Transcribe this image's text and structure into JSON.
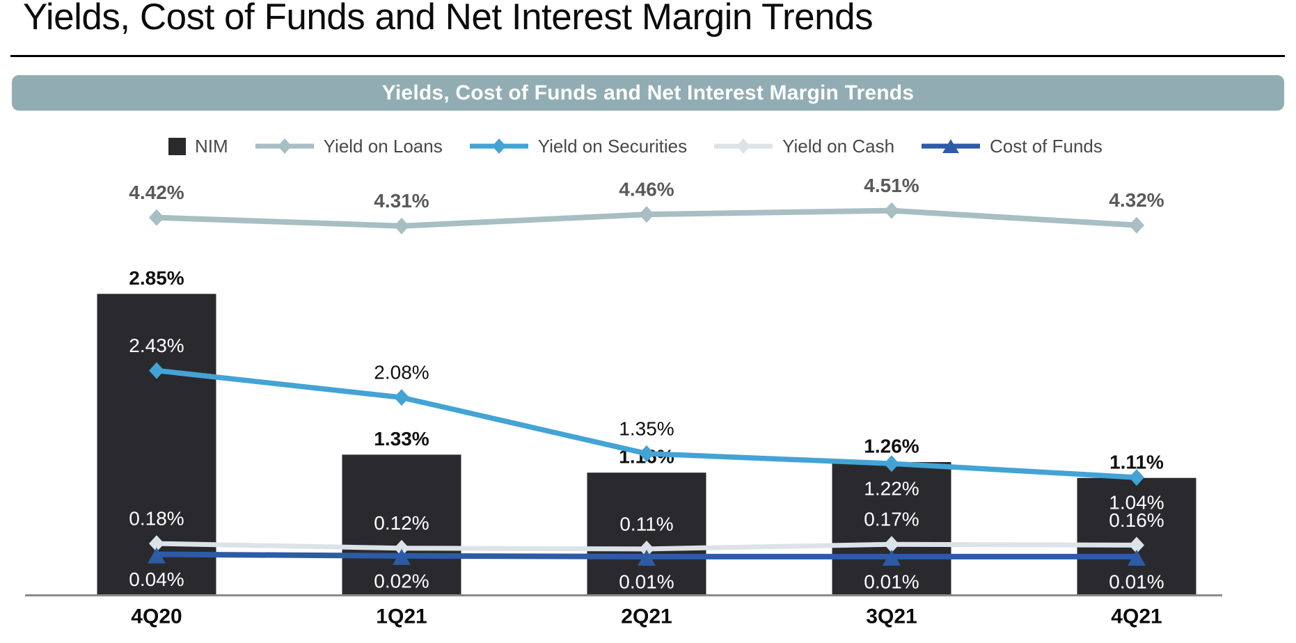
{
  "page": {
    "title": "Yields, Cost of Funds and Net Interest Margin Trends"
  },
  "chart": {
    "banner_title": "Yields, Cost of Funds and Net Interest Margin Trends"
  },
  "colors": {
    "banner_bg": "#91adb3",
    "banner_text": "#ffffff",
    "bar": "#2a2a2e",
    "loans_line": "#a7bec2",
    "securities_line": "#43a3d5",
    "cash_line": "#dce3e8",
    "cost_line": "#2d5ba6",
    "label_dark": "#0f0f0f",
    "label_gray": "#595959",
    "label_white": "#ffffff",
    "axis_line": "#8a8a8a"
  },
  "chart_data": {
    "type": "combo: bar + line",
    "legend_position": "top",
    "grid": "off",
    "y_axis_visible": false,
    "categories": [
      "4Q20",
      "1Q21",
      "2Q21",
      "3Q21",
      "4Q21"
    ],
    "bar_series": {
      "name": "NIM",
      "values": [
        2.85,
        1.33,
        1.16,
        1.26,
        1.11
      ],
      "labels": [
        "2.85%",
        "1.33%",
        "1.16%",
        "1.26%",
        "1.11%"
      ]
    },
    "line_series": [
      {
        "name": "Yield on Loans",
        "marker": "diamond",
        "values": [
          4.42,
          4.31,
          4.46,
          4.51,
          4.32
        ],
        "labels": [
          "4.42%",
          "4.31%",
          "4.46%",
          "4.51%",
          "4.32%"
        ]
      },
      {
        "name": "Yield on Securities",
        "marker": "diamond",
        "values": [
          2.43,
          2.08,
          1.35,
          1.22,
          1.04
        ],
        "labels": [
          "2.43%",
          "2.08%",
          "1.35%",
          "1.22%",
          "1.04%"
        ]
      },
      {
        "name": "Yield on Cash",
        "marker": "diamond",
        "values": [
          0.18,
          0.12,
          0.11,
          0.17,
          0.16
        ],
        "labels": [
          "0.18%",
          "0.12%",
          "0.11%",
          "0.17%",
          "0.16%"
        ]
      },
      {
        "name": "Cost of Funds",
        "marker": "triangle",
        "values": [
          0.04,
          0.02,
          0.01,
          0.01,
          0.01
        ],
        "labels": [
          "0.04%",
          "0.02%",
          "0.01%",
          "0.01%",
          "0.01%"
        ]
      }
    ],
    "legend": [
      {
        "label": "NIM",
        "swatch": "square",
        "series": "bar"
      },
      {
        "label": "Yield on Loans",
        "swatch": "line-diamond",
        "series": "loans"
      },
      {
        "label": "Yield on Securities",
        "swatch": "line-diamond",
        "series": "securities"
      },
      {
        "label": "Yield on Cash",
        "swatch": "line-diamond",
        "series": "cash"
      },
      {
        "label": "Cost of Funds",
        "swatch": "line-triangle",
        "series": "cost"
      }
    ]
  }
}
